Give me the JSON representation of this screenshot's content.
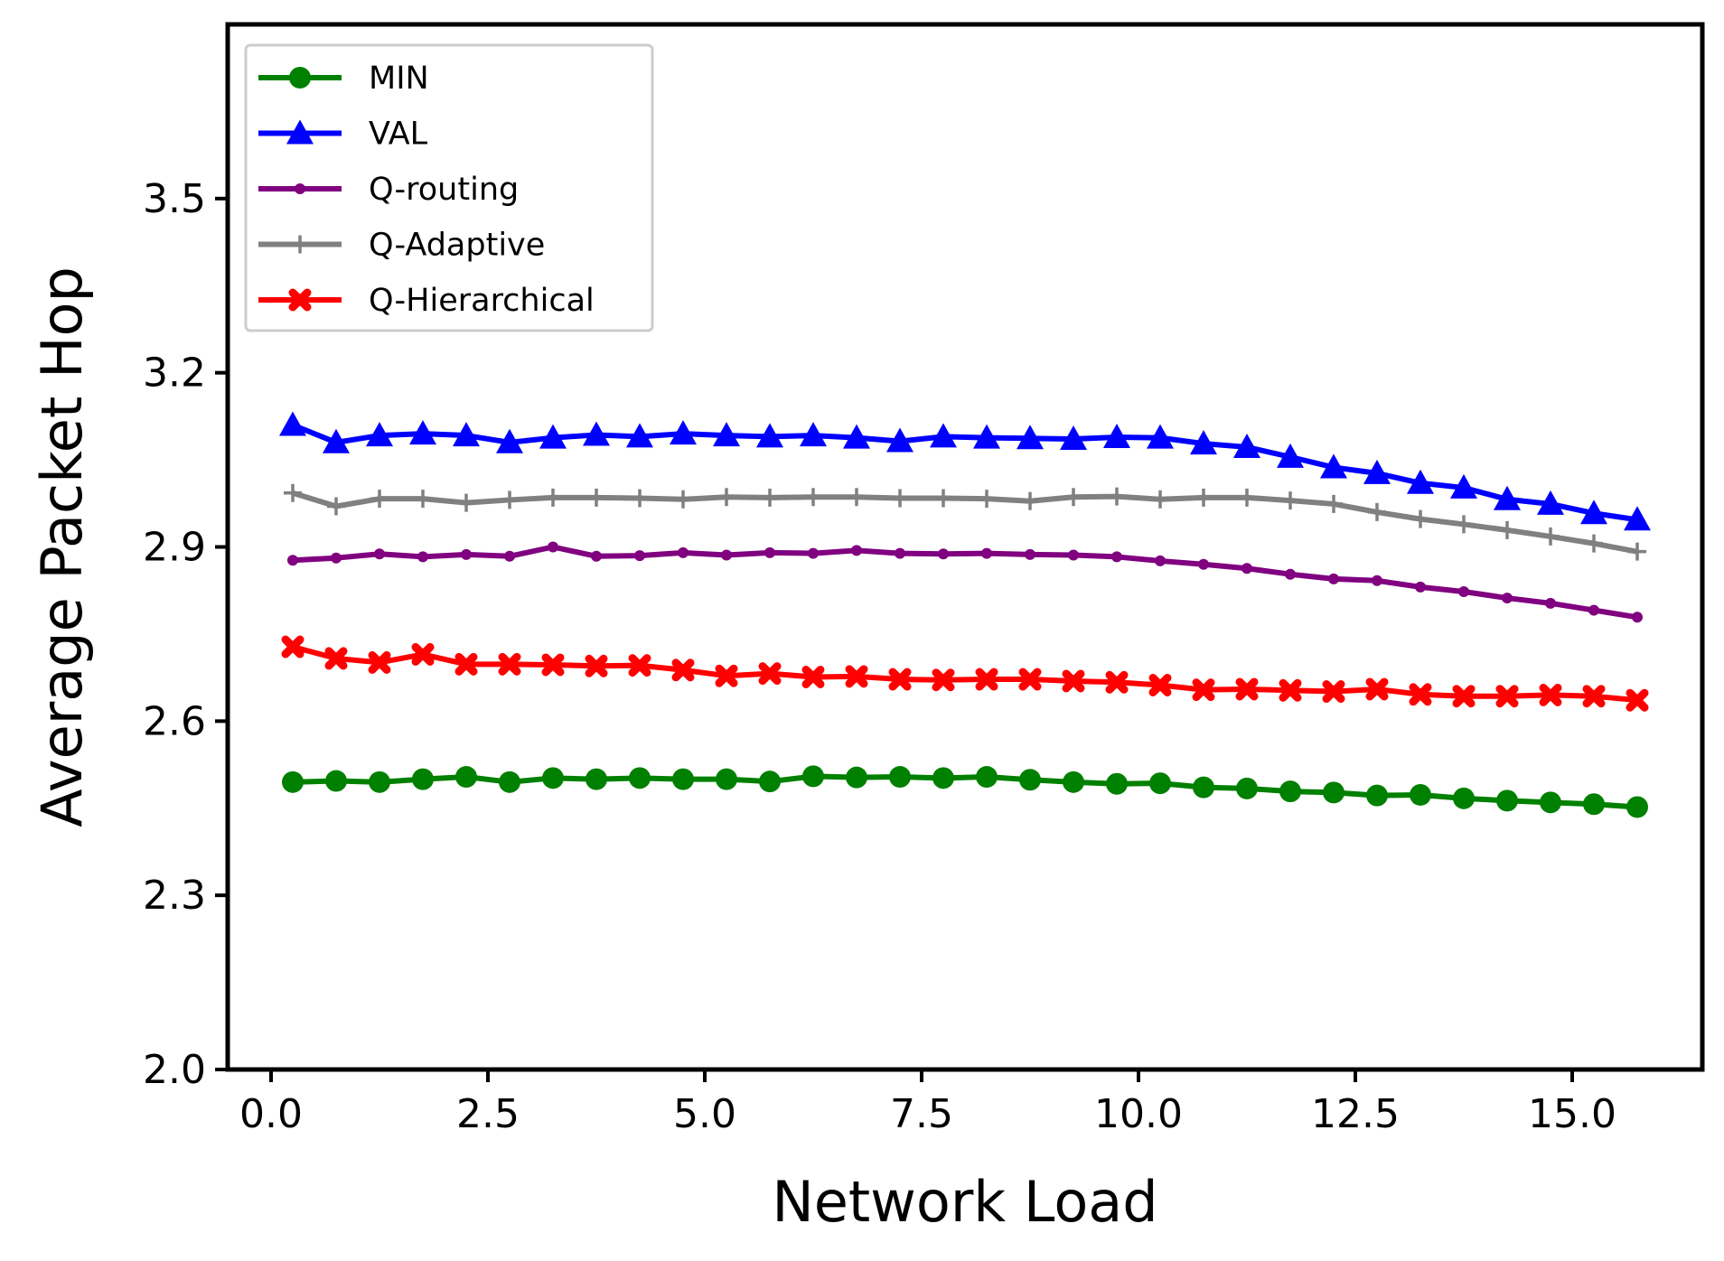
{
  "chart_data": {
    "type": "line",
    "xlabel": "Network Load",
    "ylabel": "Average Packet Hop",
    "xlim": [
      -0.5,
      16.5
    ],
    "ylim": [
      2.0,
      3.8
    ],
    "x_ticks": [
      0.0,
      2.5,
      5.0,
      7.5,
      10.0,
      12.5,
      15.0
    ],
    "x_tick_labels": [
      "0.0",
      "2.5",
      "5.0",
      "7.5",
      "10.0",
      "12.5",
      "15.0"
    ],
    "y_ticks": [
      2.0,
      2.3,
      2.6,
      2.9,
      3.2,
      3.5
    ],
    "y_tick_labels": [
      "2.0",
      "2.3",
      "2.6",
      "2.9",
      "3.2",
      "3.5"
    ],
    "grid": false,
    "legend_position": "top-left",
    "x": [
      0.25,
      0.75,
      1.25,
      1.75,
      2.25,
      2.75,
      3.25,
      3.75,
      4.25,
      4.75,
      5.25,
      5.75,
      6.25,
      6.75,
      7.25,
      7.75,
      8.25,
      8.75,
      9.25,
      9.75,
      10.25,
      10.75,
      11.25,
      11.75,
      12.25,
      12.75,
      13.25,
      13.75,
      14.25,
      14.75,
      15.25,
      15.75
    ],
    "series": [
      {
        "name": "MIN",
        "color": "#008000",
        "marker": "circle",
        "values": [
          2.495,
          2.497,
          2.495,
          2.5,
          2.504,
          2.495,
          2.502,
          2.5,
          2.502,
          2.5,
          2.5,
          2.496,
          2.505,
          2.503,
          2.504,
          2.502,
          2.504,
          2.499,
          2.495,
          2.492,
          2.493,
          2.486,
          2.484,
          2.479,
          2.477,
          2.472,
          2.473,
          2.467,
          2.463,
          2.46,
          2.457,
          2.452
        ]
      },
      {
        "name": "VAL",
        "color": "#0000ff",
        "marker": "triangle",
        "values": [
          3.11,
          3.08,
          3.092,
          3.095,
          3.092,
          3.08,
          3.088,
          3.093,
          3.09,
          3.095,
          3.092,
          3.09,
          3.092,
          3.088,
          3.082,
          3.09,
          3.088,
          3.087,
          3.086,
          3.089,
          3.088,
          3.078,
          3.072,
          3.055,
          3.037,
          3.027,
          3.01,
          3.002,
          2.982,
          2.974,
          2.958,
          2.947
        ]
      },
      {
        "name": "Q-routing",
        "color": "#800080",
        "marker": "dot",
        "values": [
          2.877,
          2.881,
          2.888,
          2.883,
          2.887,
          2.884,
          2.9,
          2.884,
          2.885,
          2.89,
          2.886,
          2.89,
          2.889,
          2.894,
          2.889,
          2.888,
          2.889,
          2.887,
          2.886,
          2.883,
          2.876,
          2.87,
          2.863,
          2.853,
          2.845,
          2.842,
          2.831,
          2.823,
          2.812,
          2.803,
          2.791,
          2.779
        ]
      },
      {
        "name": "Q-Adaptive",
        "color": "#808080",
        "marker": "plus",
        "values": [
          2.993,
          2.97,
          2.983,
          2.983,
          2.976,
          2.981,
          2.985,
          2.985,
          2.984,
          2.982,
          2.986,
          2.985,
          2.986,
          2.986,
          2.984,
          2.984,
          2.983,
          2.979,
          2.986,
          2.987,
          2.982,
          2.985,
          2.985,
          2.98,
          2.974,
          2.96,
          2.948,
          2.939,
          2.929,
          2.918,
          2.906,
          2.892
        ]
      },
      {
        "name": "Q-Hierarchical",
        "color": "#ff0000",
        "marker": "x",
        "values": [
          2.728,
          2.708,
          2.701,
          2.715,
          2.698,
          2.698,
          2.697,
          2.695,
          2.696,
          2.688,
          2.678,
          2.682,
          2.676,
          2.677,
          2.672,
          2.671,
          2.672,
          2.672,
          2.669,
          2.667,
          2.662,
          2.654,
          2.655,
          2.653,
          2.651,
          2.655,
          2.646,
          2.643,
          2.643,
          2.645,
          2.643,
          2.636
        ]
      }
    ]
  }
}
